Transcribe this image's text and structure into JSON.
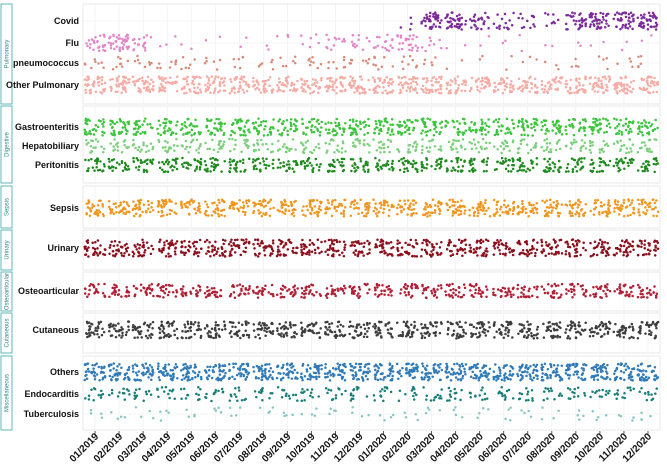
{
  "chart_data": {
    "type": "scatter",
    "subtype": "jittered strip plot (faceted)",
    "x_tick_labels": [
      "01/2019",
      "02/2019",
      "03/2019",
      "04/2019",
      "05/2019",
      "06/2019",
      "07/2019",
      "08/2019",
      "09/2019",
      "10/2019",
      "11/2019",
      "12/2019",
      "01/2020",
      "02/2020",
      "03/2020",
      "04/2020",
      "05/2020",
      "06/2020",
      "07/2020",
      "08/2020",
      "09/2020",
      "10/2020",
      "11/2020",
      "12/2020"
    ],
    "months": 24,
    "grid": true,
    "panels": [
      {
        "name": "Pulmonary",
        "categories": [
          {
            "name": "Covid",
            "color": "#7b2a9a",
            "density": [
              0,
              0,
              0,
              0,
              0,
              0,
              0,
              0,
              0,
              0,
              0,
              0,
              0,
              0.5,
              5,
              5,
              3,
              2,
              1.5,
              1,
              4,
              5,
              5,
              5
            ]
          },
          {
            "name": "Flu",
            "color": "#e386c8",
            "density": [
              3,
              5,
              2,
              0.4,
              0.3,
              0.3,
              0.3,
              0.2,
              0.4,
              0.7,
              1.5,
              1.5,
              2,
              3,
              1,
              0.3,
              0.2,
              0.2,
              0.2,
              0.2,
              0.2,
              0.2,
              0.2,
              0.3
            ]
          },
          {
            "name": "pneumococcus",
            "color": "#d88a78",
            "density": [
              1,
              1,
              1,
              1,
              0.8,
              0.8,
              0.7,
              0.7,
              0.8,
              1,
              1,
              1,
              1,
              1,
              0.6,
              0.3,
              0.3,
              0.3,
              0.4,
              0.4,
              0.5,
              0.5,
              0.5,
              0.6
            ]
          },
          {
            "name": "Other Pulmonary",
            "color": "#f4aca5",
            "density": [
              5,
              5,
              5,
              4.5,
              4.5,
              4.5,
              4.5,
              4,
              4.5,
              4.5,
              5,
              5,
              5,
              5,
              5,
              4,
              4,
              4,
              4,
              4,
              4.5,
              5,
              5,
              5
            ]
          }
        ]
      },
      {
        "name": "Digestive",
        "categories": [
          {
            "name": "Gastroenteritis",
            "color": "#3cc43c",
            "density": [
              4,
              4,
              3.5,
              3.5,
              3.5,
              4,
              4,
              3.5,
              3.5,
              3.5,
              3.5,
              4,
              4,
              4,
              4,
              3,
              3.5,
              3.5,
              4,
              4,
              3.5,
              4,
              3.5,
              3.5
            ]
          },
          {
            "name": "Hepatobiliary",
            "color": "#7ccf7c",
            "density": [
              2,
              2,
              2,
              2,
              2,
              2,
              2,
              2,
              2,
              2,
              2,
              2,
              2,
              2,
              2,
              2,
              2,
              2,
              2,
              2,
              2,
              2,
              2,
              2
            ]
          },
          {
            "name": "Peritonitis",
            "color": "#1e8a1e",
            "density": [
              3,
              3,
              3,
              3,
              3,
              3,
              3,
              3,
              3,
              3,
              3,
              3,
              3,
              3,
              3,
              3,
              3,
              3,
              3,
              3,
              3,
              3,
              3,
              3
            ]
          }
        ]
      },
      {
        "name": "Sepsis",
        "categories": [
          {
            "name": "Sepsis",
            "color": "#f0961e",
            "density": [
              4,
              4,
              4,
              4,
              4,
              4,
              4,
              4,
              4,
              4,
              4,
              4,
              4,
              4,
              4,
              4,
              4,
              4,
              4,
              4,
              4,
              4,
              4,
              4
            ]
          }
        ]
      },
      {
        "name": "Urinary",
        "categories": [
          {
            "name": "Urinary",
            "color": "#8b0f1c",
            "density": [
              4,
              4,
              4,
              4,
              4,
              4,
              4,
              4,
              4,
              4,
              4,
              4,
              4,
              4,
              4,
              4,
              4,
              4,
              4,
              4,
              4,
              4,
              4,
              4
            ]
          }
        ]
      },
      {
        "name": "Osteoarticular",
        "categories": [
          {
            "name": "Osteoarticular",
            "color": "#b01f35",
            "density": [
              3,
              3,
              3,
              3,
              3,
              3,
              3,
              3,
              3,
              3,
              3,
              3,
              3,
              3,
              3,
              3,
              3,
              3,
              3,
              3,
              3,
              3,
              3,
              3
            ]
          }
        ]
      },
      {
        "name": "Cutaneous",
        "categories": [
          {
            "name": "Cutaneous",
            "color": "#3d3d3d",
            "density": [
              4,
              4,
              4,
              4,
              4,
              4,
              4,
              4,
              4,
              4,
              4,
              4,
              4,
              4,
              4,
              4,
              4,
              4,
              4,
              4,
              4,
              4,
              4,
              4
            ]
          }
        ]
      },
      {
        "name": "Miscellaneous",
        "categories": [
          {
            "name": "Others",
            "color": "#2f7ab7",
            "density": [
              5,
              5,
              5,
              5,
              5,
              5,
              5,
              5,
              5,
              5,
              5,
              5,
              5,
              5,
              5,
              5,
              5,
              5,
              5,
              5,
              5,
              5,
              5,
              5
            ]
          },
          {
            "name": "Endocarditis",
            "color": "#177e77",
            "density": [
              1.5,
              1.5,
              1.5,
              1.5,
              1.5,
              1.5,
              1.5,
              1.5,
              1.5,
              1.5,
              1.5,
              1.5,
              1.5,
              1.5,
              1.5,
              1.5,
              1.5,
              1.5,
              1.5,
              1.5,
              1.5,
              1.5,
              1.5,
              1.5
            ]
          },
          {
            "name": "Tuberculosis",
            "color": "#8ac6c2",
            "density": [
              0.5,
              0.5,
              0.5,
              0.5,
              0.5,
              0.5,
              0.5,
              0.5,
              0.5,
              0.5,
              0.5,
              0.5,
              0.5,
              0.5,
              0.5,
              0.5,
              0.5,
              0.5,
              0.5,
              0.5,
              0.5,
              0.5,
              0.5,
              0.5
            ]
          }
        ]
      }
    ],
    "density_note": "relative point density per month (approximate, read visually)"
  }
}
